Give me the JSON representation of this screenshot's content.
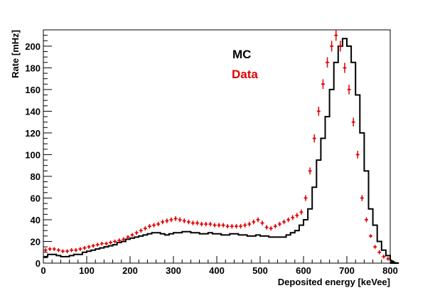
{
  "chart_data": {
    "type": "line",
    "xlabel": "Deposited energy [keVee]",
    "ylabel": "Rate [mHz]",
    "xlim": [
      0,
      800
    ],
    "ylim": [
      0,
      215
    ],
    "x_ticks": [
      "0",
      "100",
      "200",
      "300",
      "400",
      "500",
      "600",
      "700",
      "800"
    ],
    "y_ticks": [
      "0",
      "20",
      "40",
      "60",
      "80",
      "100",
      "120",
      "140",
      "160",
      "180",
      "200"
    ],
    "grid": false,
    "legend": [
      {
        "label": "MC",
        "color": "#000000"
      },
      {
        "label": "Data",
        "color": "#e00000"
      }
    ],
    "bin_width": 10,
    "series": [
      {
        "name": "MC",
        "style": "step",
        "color": "#000000",
        "values": [
          6,
          8,
          8,
          7,
          6,
          6,
          7,
          8,
          8,
          10,
          11,
          12,
          13,
          14,
          15,
          16,
          17,
          19,
          20,
          22,
          23,
          24,
          25,
          26,
          27,
          28,
          28,
          27,
          26,
          27,
          28,
          28,
          29,
          29,
          28,
          28,
          27,
          27,
          28,
          27,
          27,
          26,
          26,
          27,
          27,
          26,
          26,
          25,
          25,
          26,
          25,
          25,
          24,
          24,
          24,
          24,
          26,
          28,
          30,
          35,
          40,
          50,
          70,
          95,
          115,
          135,
          160,
          185,
          200,
          207,
          200,
          185,
          155,
          120,
          85,
          50,
          35,
          20,
          12,
          7,
          3,
          1,
          0
        ]
      },
      {
        "name": "Data",
        "style": "errorbar",
        "color": "#e00000",
        "values": [
          12,
          13,
          13,
          12,
          11,
          11,
          12,
          12,
          13,
          14,
          15,
          16,
          17,
          18,
          18,
          19,
          20,
          21,
          22,
          24,
          26,
          28,
          30,
          32,
          34,
          35,
          36,
          38,
          39,
          40,
          41,
          40,
          39,
          38,
          37,
          37,
          36,
          36,
          36,
          35,
          35,
          35,
          34,
          34,
          34,
          34,
          35,
          36,
          38,
          40,
          37,
          33,
          32,
          34,
          36,
          38,
          40,
          42,
          44,
          47,
          60,
          85,
          115,
          140,
          165,
          185,
          200,
          210,
          200,
          180,
          160,
          130,
          100,
          60,
          40,
          25,
          15,
          10,
          6,
          4,
          2,
          1,
          0
        ]
      }
    ]
  }
}
